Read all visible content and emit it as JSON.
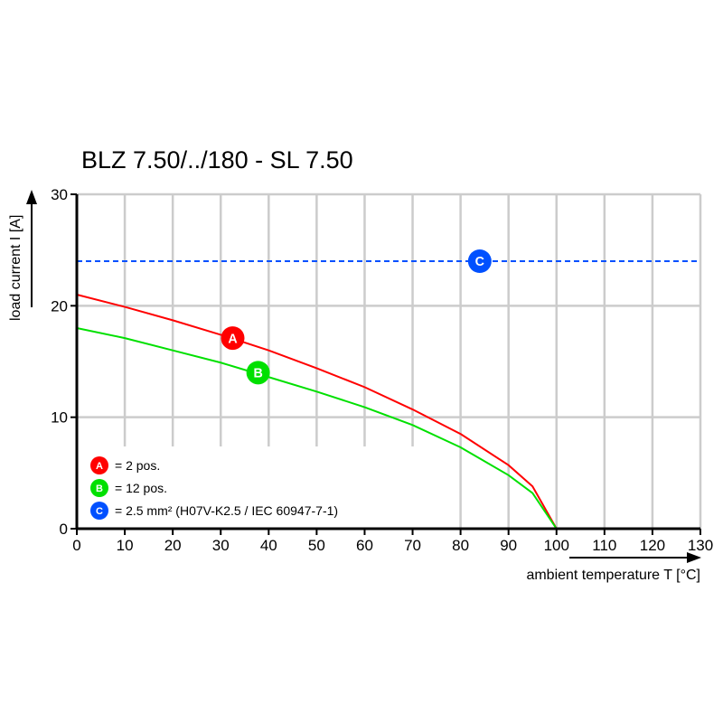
{
  "chart_data": {
    "type": "line",
    "title": "BLZ 7.50/../180 - SL 7.50",
    "xlabel": "ambient temperature T [°C]",
    "ylabel": "load current I [A]",
    "xlim": [
      0,
      130
    ],
    "ylim": [
      0,
      30
    ],
    "xticks": [
      0,
      10,
      20,
      30,
      40,
      50,
      60,
      70,
      80,
      90,
      100,
      110,
      120,
      130
    ],
    "yticks": [
      0,
      10,
      20,
      30
    ],
    "grid": true,
    "legend_placement": "bottom-left",
    "series": [
      {
        "marker": "A",
        "color": "#ff0000",
        "dashed": false,
        "marker_at": [
          32.5,
          17.1
        ],
        "x": [
          0,
          10,
          20,
          30,
          40,
          50,
          60,
          70,
          80,
          90,
          95,
          100
        ],
        "y": [
          21,
          19.9,
          18.7,
          17.4,
          16,
          14.4,
          12.7,
          10.7,
          8.5,
          5.7,
          3.8,
          0
        ]
      },
      {
        "marker": "B",
        "color": "#00e000",
        "dashed": false,
        "marker_at": [
          37.8,
          14
        ],
        "x": [
          0,
          10,
          20,
          30,
          40,
          50,
          60,
          70,
          80,
          90,
          95,
          100
        ],
        "y": [
          18,
          17.1,
          16,
          14.9,
          13.6,
          12.3,
          10.9,
          9.3,
          7.3,
          4.8,
          3.2,
          0
        ]
      },
      {
        "marker": "C",
        "color": "#0050ff",
        "dashed": true,
        "marker_at": [
          84,
          24
        ],
        "x": [
          0,
          130
        ],
        "y": [
          24,
          24
        ]
      }
    ],
    "legend": [
      {
        "marker": "A",
        "color": "#ff0000",
        "text": "= 2 pos."
      },
      {
        "marker": "B",
        "color": "#00e000",
        "text": "= 12 pos."
      },
      {
        "marker": "C",
        "color": "#0050ff",
        "text": "= 2.5 mm² (H07V-K2.5 / IEC 60947-7-1)"
      }
    ]
  }
}
